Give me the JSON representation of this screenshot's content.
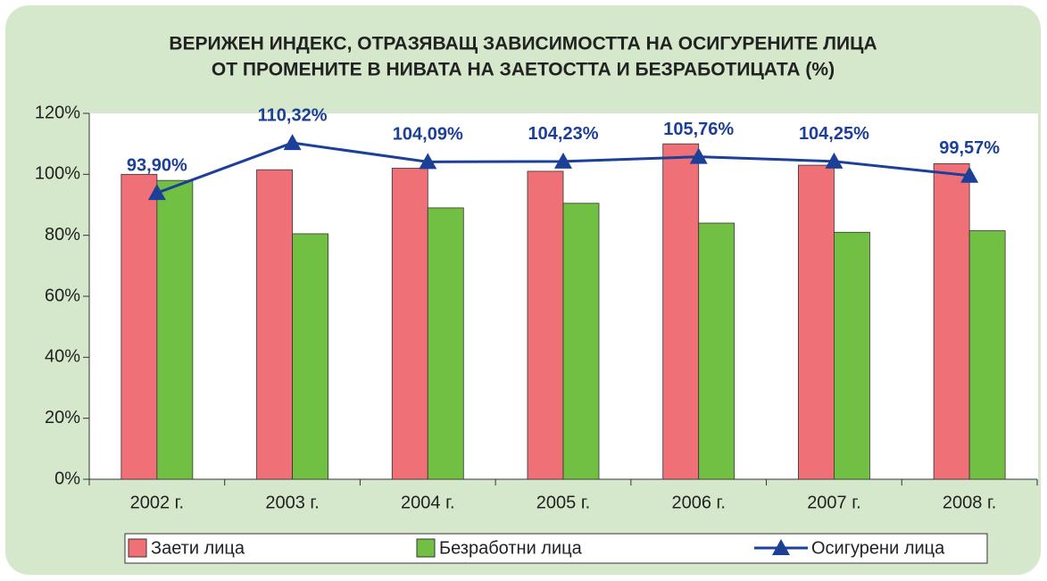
{
  "chart_data": {
    "type": "bar_line",
    "title": [
      "ВЕРИЖЕН ИНДЕКС, ОТРАЗЯВАЩ ЗАВИСИМОСТТА НА ОСИГУРЕНИТЕ ЛИЦА",
      "ОТ ПРОМЕНИТЕ В НИВАТА НА ЗАЕТОСТТА И БЕЗРАБОТИЦАТА (%)"
    ],
    "categories": [
      "2002 г.",
      "2003 г.",
      "2004 г.",
      "2005 г.",
      "2006 г.",
      "2007 г.",
      "2008 г."
    ],
    "series": [
      {
        "name": "Заети лица",
        "type": "bar",
        "color": "#f07078",
        "values": [
          100,
          101.5,
          102,
          101,
          110,
          103,
          103.5
        ]
      },
      {
        "name": "Безработни лица",
        "type": "bar",
        "color": "#72c043",
        "values": [
          98,
          80.5,
          89,
          90.5,
          84,
          81,
          81.5
        ]
      },
      {
        "name": "Осигурени лица",
        "type": "line",
        "color": "#1c3f98",
        "values": [
          93.9,
          110.32,
          104.09,
          104.23,
          105.76,
          104.25,
          99.57
        ],
        "value_labels": [
          "93,90%",
          "110,32%",
          "104,09%",
          "104,23%",
          "105,76%",
          "104,25%",
          "99,57%"
        ]
      }
    ],
    "ylim": [
      0,
      120
    ],
    "yticks": [
      {
        "value": 0,
        "label": "0%"
      },
      {
        "value": 20,
        "label": "20%"
      },
      {
        "value": 40,
        "label": "40%"
      },
      {
        "value": 60,
        "label": "60%"
      },
      {
        "value": 80,
        "label": "80%"
      },
      {
        "value": 100,
        "label": "100%"
      },
      {
        "value": 120,
        "label": "120%"
      }
    ],
    "legend": "bottom"
  }
}
